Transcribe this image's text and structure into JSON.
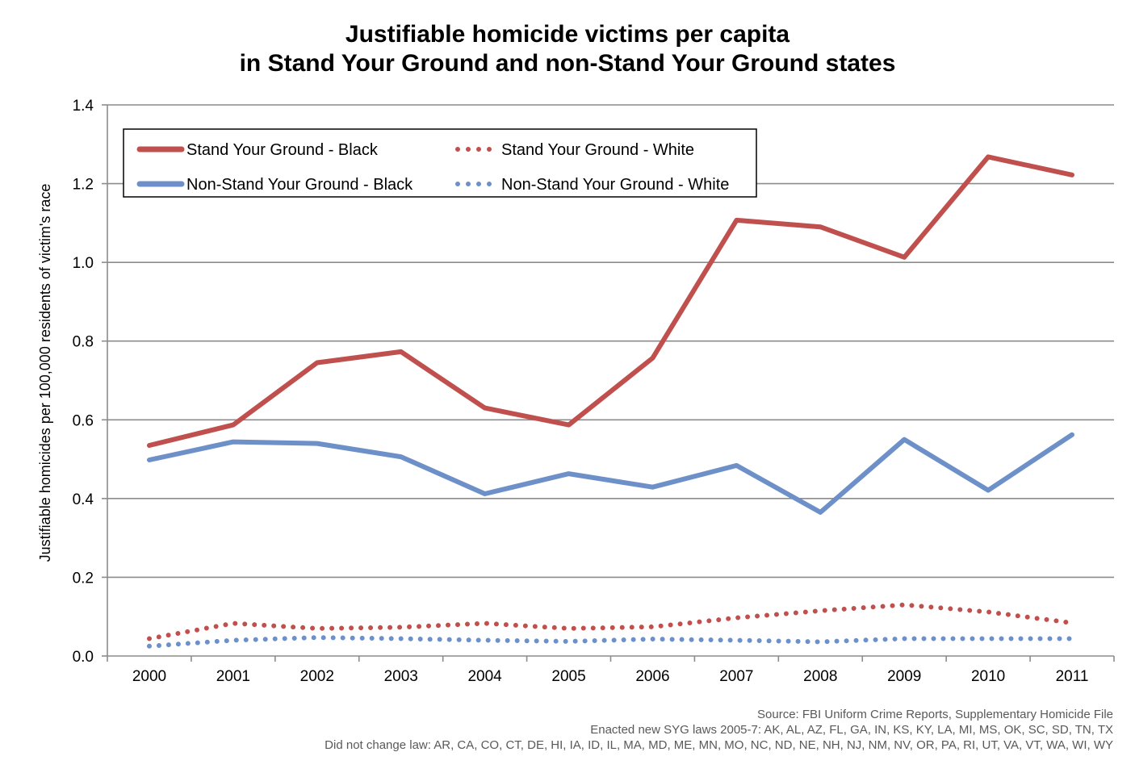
{
  "chart_data": {
    "type": "line",
    "title": "Justifiable homicide victims per capita",
    "subtitle": "in Stand Your Ground and non-Stand Your Ground states",
    "xlabel": "",
    "ylabel": "Justifiable homicides per 100,000 residents of victim's race",
    "ylim": [
      0,
      1.4
    ],
    "yticks": [
      "0.0",
      "0.2",
      "0.4",
      "0.6",
      "0.8",
      "1.0",
      "1.2",
      "1.4"
    ],
    "grid": true,
    "legend_position": "top-left",
    "categories": [
      "2000",
      "2001",
      "2002",
      "2003",
      "2004",
      "2005",
      "2006",
      "2007",
      "2008",
      "2009",
      "2010",
      "2011"
    ],
    "series": [
      {
        "name": "Stand Your Ground - Black",
        "style": "solid",
        "color": "#C0504D",
        "values": [
          0.535,
          0.587,
          0.745,
          0.773,
          0.63,
          0.587,
          0.757,
          1.107,
          1.09,
          1.013,
          1.268,
          1.222
        ]
      },
      {
        "name": "Stand Your Ground - White",
        "style": "dotted",
        "color": "#C0504D",
        "values": [
          0.044,
          0.083,
          0.07,
          0.073,
          0.083,
          0.07,
          0.074,
          0.097,
          0.115,
          0.13,
          0.112,
          0.084
        ]
      },
      {
        "name": "Non-Stand Your Ground - Black",
        "style": "solid",
        "color": "#6D90C9",
        "values": [
          0.498,
          0.544,
          0.54,
          0.506,
          0.412,
          0.463,
          0.429,
          0.484,
          0.365,
          0.55,
          0.421,
          0.562
        ]
      },
      {
        "name": "Non-Stand Your Ground - White",
        "style": "dotted",
        "color": "#6D90C9",
        "values": [
          0.025,
          0.04,
          0.047,
          0.044,
          0.04,
          0.037,
          0.043,
          0.04,
          0.036,
          0.044,
          0.044,
          0.044
        ]
      }
    ],
    "notes": [
      "Source: FBI Uniform Crime Reports, Supplementary Homicide File",
      "Enacted new  SYG laws 2005-7: AK, AL, AZ, FL, GA,  IN, KS, KY, LA, MI, MS,  OK, SC, SD, TN, TX",
      "Did not  change law: AR, CA, CO, CT, DE, HI, IA, ID, IL, MA, MD, ME, MN, MO, NC, ND, NE, NH, NJ, NM, NV, OR, PA, RI, UT, VA, VT, WA, WI, WY"
    ]
  }
}
